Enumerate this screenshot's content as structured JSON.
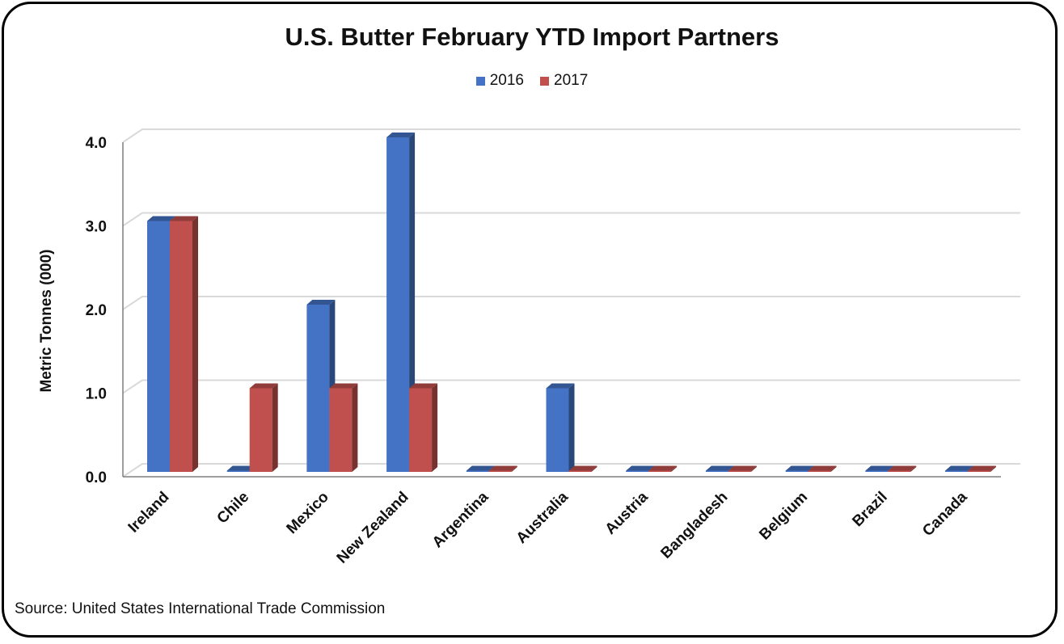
{
  "chart_data": {
    "type": "bar",
    "title": "U.S. Butter February YTD Import Partners",
    "ylabel": "Metric Tonnes (000)",
    "xlabel": "",
    "categories": [
      "Ireland",
      "Chile",
      "Mexico",
      "New Zealand",
      "Argentina",
      "Australia",
      "Austria",
      "Bangladesh",
      "Belgium",
      "Brazil",
      "Canada"
    ],
    "series": [
      {
        "name": "2016",
        "color": "#4472C4",
        "values": [
          3.0,
          0.0,
          2.0,
          4.0,
          0.0,
          1.0,
          0.0,
          0.0,
          0.0,
          0.0,
          0.0
        ]
      },
      {
        "name": "2017",
        "color": "#C0504D",
        "values": [
          3.0,
          1.0,
          1.0,
          1.0,
          0.0,
          0.0,
          0.0,
          0.0,
          0.0,
          0.0,
          0.0
        ]
      }
    ],
    "yticks": [
      "0.0",
      "1.0",
      "2.0",
      "3.0",
      "4.0"
    ],
    "ylim": [
      0,
      4
    ],
    "grid": true,
    "legend_position": "top-center",
    "style": "3d-clustered-column"
  },
  "source": "Source: United States International Trade Commission"
}
